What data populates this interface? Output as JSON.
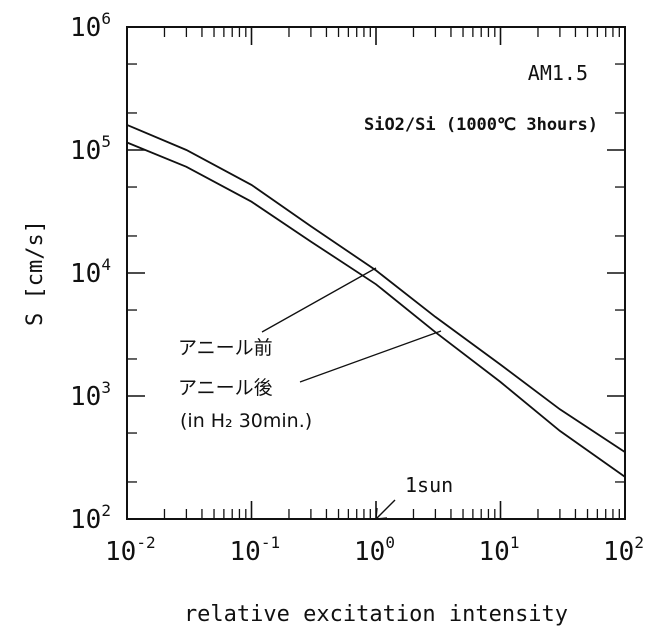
{
  "chart_data": {
    "type": "line",
    "xscale": "log",
    "yscale": "log",
    "xlim": [
      0.01,
      100
    ],
    "ylim": [
      100,
      1000000
    ],
    "xticks": [
      {
        "base": "10",
        "exp": "-2"
      },
      {
        "base": "10",
        "exp": "-1"
      },
      {
        "base": "10",
        "exp": "0"
      },
      {
        "base": "10",
        "exp": "1"
      },
      {
        "base": "10",
        "exp": "2"
      }
    ],
    "yticks": [
      {
        "base": "10",
        "exp": "2"
      },
      {
        "base": "10",
        "exp": "3"
      },
      {
        "base": "10",
        "exp": "4"
      },
      {
        "base": "10",
        "exp": "5"
      },
      {
        "base": "10",
        "exp": "6"
      }
    ],
    "xlabel": "relative excitation intensity",
    "ylabel": "S [cm/s]",
    "annotations": {
      "spectrum": "AM1.5",
      "sample": "SiO2/Si (1000℃ 3hours)",
      "sun_marker": "1sun",
      "sun_marker_x": 1
    },
    "series": [
      {
        "name": "アニール前",
        "x": [
          0.01,
          0.03,
          0.1,
          0.3,
          1,
          3,
          10,
          30,
          100
        ],
        "y": [
          160000,
          100000,
          52000,
          24000,
          10500,
          4400,
          1800,
          780,
          350
        ]
      },
      {
        "name": "アニール後",
        "name_note": "(in H₂ 30min.)",
        "x": [
          0.01,
          0.03,
          0.1,
          0.3,
          1,
          3,
          10,
          30,
          100
        ],
        "y": [
          115000,
          73000,
          38000,
          18000,
          8100,
          3300,
          1300,
          520,
          220
        ]
      }
    ],
    "grid": false,
    "legend": "none"
  }
}
